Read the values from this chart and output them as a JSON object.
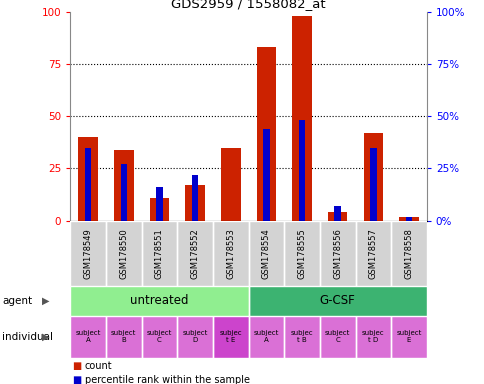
{
  "title": "GDS2959 / 1558082_at",
  "samples": [
    "GSM178549",
    "GSM178550",
    "GSM178551",
    "GSM178552",
    "GSM178553",
    "GSM178554",
    "GSM178555",
    "GSM178556",
    "GSM178557",
    "GSM178558"
  ],
  "count_values": [
    40,
    34,
    11,
    17,
    35,
    83,
    98,
    4,
    42,
    2
  ],
  "percentile_values": [
    35,
    27,
    16,
    22,
    0,
    44,
    48,
    7,
    35,
    2
  ],
  "agent_groups": [
    {
      "label": "untreated",
      "start": 0,
      "end": 5,
      "color": "#90ee90"
    },
    {
      "label": "G-CSF",
      "start": 5,
      "end": 10,
      "color": "#3cb371"
    }
  ],
  "individuals": [
    {
      "label": "subject\nA",
      "idx": 0,
      "color": "#da70d6"
    },
    {
      "label": "subject\nB",
      "idx": 1,
      "color": "#da70d6"
    },
    {
      "label": "subject\nC",
      "idx": 2,
      "color": "#da70d6"
    },
    {
      "label": "subject\nD",
      "idx": 3,
      "color": "#da70d6"
    },
    {
      "label": "subjec\nt E",
      "idx": 4,
      "color": "#cc44cc"
    },
    {
      "label": "subject\nA",
      "idx": 5,
      "color": "#da70d6"
    },
    {
      "label": "subjec\nt B",
      "idx": 6,
      "color": "#da70d6"
    },
    {
      "label": "subject\nC",
      "idx": 7,
      "color": "#da70d6"
    },
    {
      "label": "subjec\nt D",
      "idx": 8,
      "color": "#da70d6"
    },
    {
      "label": "subject\nE",
      "idx": 9,
      "color": "#da70d6"
    }
  ],
  "bar_color": "#cc2200",
  "percentile_color": "#0000cc",
  "ylim": [
    0,
    100
  ],
  "yticks": [
    0,
    25,
    50,
    75,
    100
  ],
  "bar_width": 0.55,
  "percentile_bar_width": 0.18,
  "sample_area_color": "#d3d3d3",
  "fig_bg": "#ffffff"
}
